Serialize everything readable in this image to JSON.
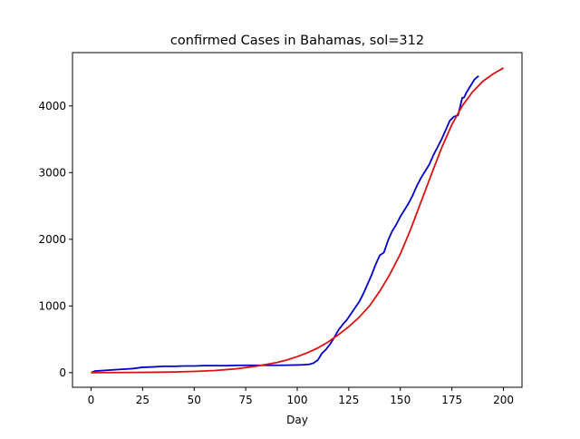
{
  "chart_data": {
    "type": "line",
    "title": "confirmed Cases in Bahamas, sol=312",
    "xlabel": "Day",
    "ylabel": "",
    "xlim": [
      -9,
      209
    ],
    "ylim": [
      -220,
      4800
    ],
    "xticks": [
      0,
      25,
      50,
      75,
      100,
      125,
      150,
      175,
      200
    ],
    "yticks": [
      0,
      1000,
      2000,
      3000,
      4000
    ],
    "grid": false,
    "legend": "none",
    "series": [
      {
        "color": "#0000cc",
        "x": [
          0,
          2,
          5,
          10,
          15,
          20,
          25,
          30,
          35,
          40,
          45,
          50,
          55,
          60,
          65,
          70,
          75,
          80,
          85,
          90,
          95,
          100,
          103,
          106,
          108,
          110,
          112,
          114,
          116,
          118,
          120,
          122,
          124,
          126,
          128,
          130,
          132,
          134,
          136,
          138,
          140,
          142,
          144,
          146,
          148,
          150,
          152,
          154,
          156,
          158,
          160,
          162,
          164,
          166,
          168,
          170,
          172,
          174,
          176,
          178,
          180,
          181,
          182,
          184,
          186,
          188
        ],
        "y": [
          0,
          25,
          30,
          40,
          50,
          60,
          80,
          85,
          95,
          95,
          100,
          100,
          105,
          105,
          105,
          108,
          110,
          110,
          110,
          110,
          112,
          115,
          118,
          125,
          145,
          190,
          290,
          350,
          430,
          530,
          640,
          720,
          790,
          880,
          970,
          1060,
          1180,
          1320,
          1460,
          1620,
          1760,
          1800,
          1980,
          2120,
          2220,
          2340,
          2440,
          2540,
          2660,
          2800,
          2920,
          3020,
          3120,
          3260,
          3380,
          3500,
          3640,
          3780,
          3840,
          3860,
          4120,
          4130,
          4200,
          4300,
          4400,
          4450
        ]
      },
      {
        "color": "#dd1111",
        "x": [
          0,
          10,
          20,
          30,
          40,
          50,
          60,
          70,
          80,
          90,
          95,
          100,
          105,
          110,
          115,
          120,
          125,
          130,
          135,
          140,
          145,
          150,
          155,
          160,
          165,
          170,
          175,
          180,
          185,
          190,
          195,
          200
        ],
        "y": [
          0,
          1,
          3,
          5,
          10,
          18,
          32,
          56,
          97,
          150,
          190,
          240,
          300,
          370,
          460,
          570,
          690,
          830,
          1000,
          1220,
          1480,
          1780,
          2150,
          2560,
          2970,
          3370,
          3720,
          4000,
          4210,
          4370,
          4480,
          4570
        ]
      }
    ]
  }
}
